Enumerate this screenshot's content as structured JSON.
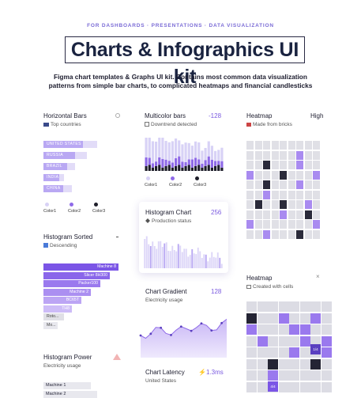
{
  "header": {
    "eyebrow": "FOR DASHBOARDS · PRESENTATIONS · DATA VISUALIZATION",
    "title": "Charts & Infographics UI kit",
    "subtitle_line1": "Figma chart templates & Graphs UI kit. Contains most common data visualization",
    "subtitle_line2": "patterns from simple bar charts, to complicated heatmaps and financial candlesticks"
  },
  "cards": {
    "horizontal_bars": {
      "title": "Horizontal Bars",
      "subtitle": "Top countries",
      "icon": "flag-icon",
      "items": [
        {
          "label": "UNITED STATES",
          "value": 0.68,
          "inner": 0.5
        },
        {
          "label": "RUSSIA",
          "value": 0.55,
          "inner": 0.4
        },
        {
          "label": "BRAZIL",
          "value": 0.4,
          "inner": 0.3
        },
        {
          "label": "INDIA",
          "value": 0.26,
          "inner": 0.2
        },
        {
          "label": "CHINA",
          "value": 0.36,
          "inner": 0.25
        }
      ],
      "legend": [
        "Color1",
        "Color2",
        "Color3"
      ]
    },
    "multicolor_bars": {
      "title": "Multicolor bars",
      "value": "-128",
      "subtitle": "Downtrend detected",
      "legend": [
        "Color1",
        "Color2",
        "Color3"
      ]
    },
    "heatmap_top": {
      "title": "Heatmap",
      "value": "High",
      "subtitle": "Made from bricks"
    },
    "histogram_chart": {
      "title": "Histogram Chart",
      "value": "256",
      "subtitle": "Production status"
    },
    "histogram_sorted": {
      "title": "Histogram Sorted",
      "subtitle": "Descending",
      "items": [
        {
          "label": "Machine 8",
          "value": 0.95
        },
        {
          "label": "Slicer 8H300",
          "value": 0.84
        },
        {
          "label": "Packer100",
          "value": 0.72
        },
        {
          "label": "Machine 2",
          "value": 0.6
        },
        {
          "label": "BC65T",
          "value": 0.48
        },
        {
          "label": "TH8",
          "value": 0.36
        },
        {
          "label": "Roto...",
          "value": 0.26
        },
        {
          "label": "Mo...",
          "value": 0.18
        }
      ]
    },
    "chart_gradient": {
      "title": "Chart Gradient",
      "value": "128",
      "subtitle": "Electricity usage"
    },
    "heatmap_cells": {
      "title": "Heatmap",
      "subtitle": "Created with cells",
      "cell_label_1": "1/4",
      "cell_label_2": "4/4"
    },
    "histogram_power": {
      "title": "Histogram Power",
      "subtitle": "Electricity usage",
      "items": [
        "Machine 1",
        "Machine 2"
      ]
    },
    "chart_latency": {
      "title": "Chart Latency",
      "value": "1.3ms",
      "subtitle": "United States"
    }
  },
  "colors": {
    "accent": "#7a5ae0",
    "light": "#e2dcf8",
    "mid": "#b9a8f3",
    "dark": "#2a2a3a"
  }
}
